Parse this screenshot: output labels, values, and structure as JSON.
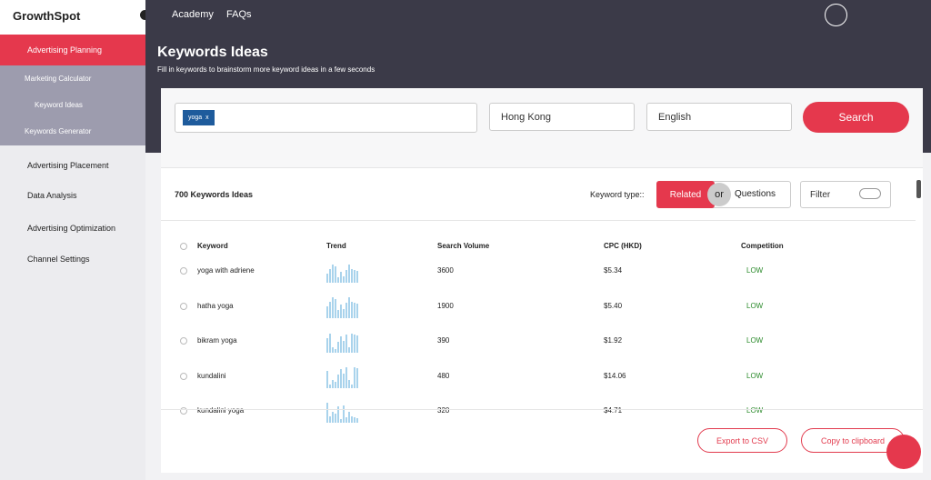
{
  "brand": "GrowthSpot",
  "topnav": [
    "Academy",
    "FAQs"
  ],
  "sidebar": {
    "active": "Advertising Planning",
    "submenu": [
      "Marketing Calculator",
      "Keyword Ideas",
      "Keywords Generator"
    ],
    "items": [
      "Advertising Placement",
      "Data Analysis",
      "Advertising Optimization",
      "Channel Settings"
    ]
  },
  "page": {
    "title": "Keywords Ideas",
    "subtitle": "Fill in keywords to brainstorm more keyword ideas in a few seconds"
  },
  "search": {
    "tag": "yoga",
    "tag_remove": "x",
    "location": "Hong Kong",
    "language": "English",
    "button": "Search"
  },
  "results": {
    "count": "700 Keywords Ideas",
    "keyword_type_label": "Keyword type::",
    "types": [
      "Related",
      "Questions"
    ],
    "or": "or",
    "filter": "Filter"
  },
  "table": {
    "columns": [
      "Keyword",
      "Trend",
      "Search Volume",
      "CPC (HKD)",
      "Competition"
    ],
    "rows": [
      [
        "yoga with adriene",
        3600,
        "$5.34",
        "LOW"
      ],
      [
        "hatha yoga",
        1900,
        "$5.40",
        "LOW"
      ],
      [
        "bikram yoga",
        390,
        "$1.92",
        "LOW"
      ],
      [
        "kundalini",
        480,
        "$14.06",
        "LOW"
      ],
      [
        "kundalini yoga",
        320,
        "$4.71",
        "LOW"
      ]
    ]
  },
  "actions": [
    "Export to CSV",
    "Copy to clipboard"
  ]
}
